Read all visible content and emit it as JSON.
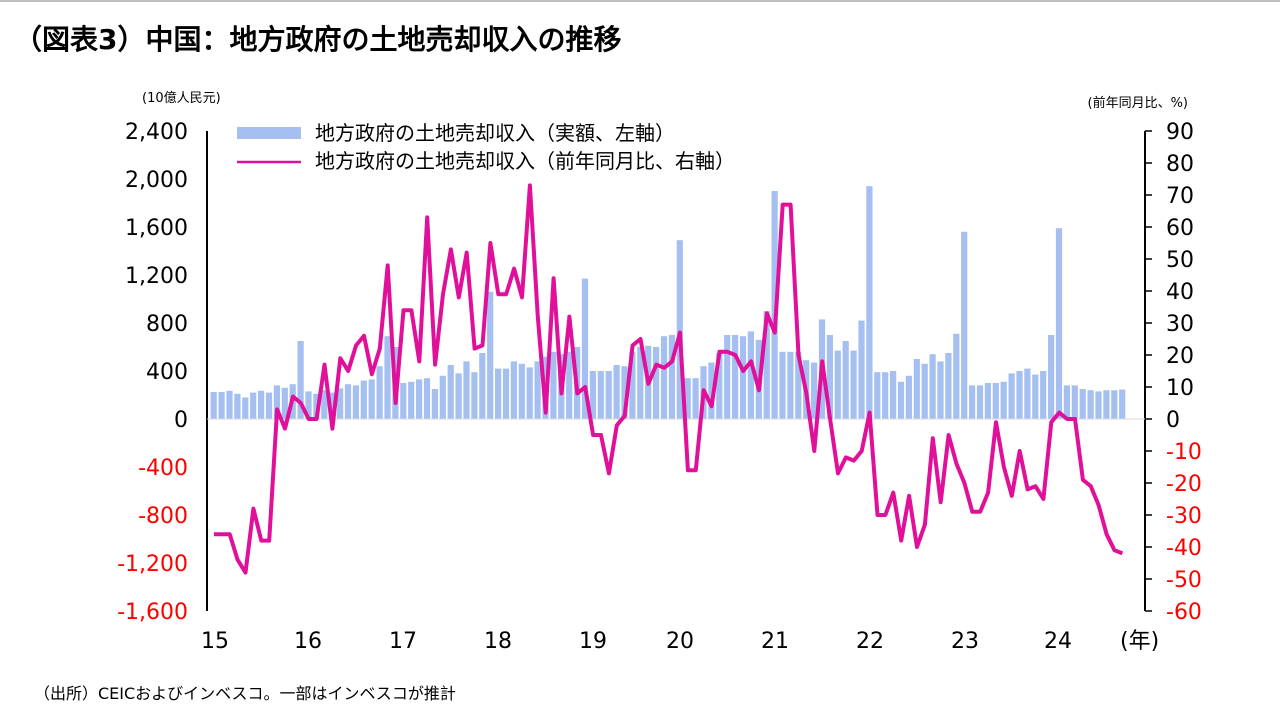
{
  "title": "（図表3）中国：地方政府の土地売却収入の推移",
  "source": "（出所）CEICおよびインベスコ。一部はインベスコが推計",
  "colors": {
    "bar": "#a4bff0",
    "line": "#e0109a",
    "negative_tick": "#ff0000",
    "axis": "#000000"
  },
  "chart_data": {
    "type": "bar+line",
    "left_axis_unit": "(10億人民元)",
    "right_axis_unit": "(前年同月比、%)",
    "x_axis_unit": "(年)",
    "left_axis": {
      "min": -1600,
      "max": 2400,
      "ticks": [
        2400,
        2000,
        1600,
        1200,
        800,
        400,
        0,
        -400,
        -800,
        -1200,
        -1600
      ],
      "tick_labels": [
        "2,400",
        "2,000",
        "1,600",
        "1,200",
        "800",
        "400",
        "0",
        "-400",
        "-800",
        "-1,200",
        "-1,600"
      ]
    },
    "right_axis": {
      "min": -60,
      "max": 90,
      "ticks": [
        90,
        80,
        70,
        60,
        50,
        40,
        30,
        20,
        10,
        0,
        -10,
        -20,
        -30,
        -40,
        -50,
        -60
      ],
      "tick_labels": [
        "90",
        "80",
        "70",
        "60",
        "50",
        "40",
        "30",
        "20",
        "10",
        "0",
        "-10",
        "-20",
        "-30",
        "-40",
        "-50",
        "-60"
      ]
    },
    "year_labels": [
      "15",
      "16",
      "17",
      "18",
      "19",
      "20",
      "21",
      "22",
      "23",
      "24"
    ],
    "legend": {
      "bar": "地方政府の土地売却収入（実額、左軸）",
      "line": "地方政府の土地売却収入（前年同月比、右軸）"
    },
    "start": "2015-01",
    "series": [
      {
        "name": "地方政府の土地売却収入（実額、左軸）",
        "axis": "left",
        "type": "bar",
        "values": [
          225,
          225,
          235,
          210,
          180,
          220,
          235,
          220,
          280,
          260,
          290,
          650,
          230,
          210,
          240,
          220,
          255,
          290,
          280,
          320,
          330,
          440,
          690,
          600,
          300,
          310,
          330,
          340,
          250,
          360,
          450,
          380,
          480,
          390,
          550,
          1060,
          420,
          420,
          480,
          460,
          430,
          480,
          520,
          560,
          540,
          560,
          600,
          1170,
          400,
          400,
          400,
          450,
          440,
          560,
          600,
          610,
          600,
          690,
          700,
          1490,
          340,
          340,
          440,
          470,
          550,
          700,
          700,
          690,
          730,
          660,
          900,
          1900,
          560,
          560,
          560,
          490,
          470,
          830,
          700,
          570,
          650,
          570,
          820,
          1940,
          390,
          390,
          400,
          310,
          360,
          500,
          460,
          540,
          480,
          550,
          710,
          1560,
          280,
          280,
          300,
          300,
          310,
          380,
          400,
          420,
          370,
          400,
          700,
          1590,
          280,
          280,
          250,
          240,
          230,
          240,
          240,
          245
        ]
      },
      {
        "name": "地方政府の土地売却収入（前年同月比、右軸）",
        "axis": "right",
        "type": "line",
        "values": [
          -36,
          -36,
          -36,
          -44,
          -48,
          -28,
          -38,
          -38,
          3,
          -3,
          7,
          5,
          0,
          0,
          17,
          -3,
          19,
          15,
          23,
          26,
          14,
          22,
          48,
          5,
          34,
          34,
          18,
          63,
          17,
          39,
          53,
          38,
          52,
          22,
          23,
          55,
          39,
          39,
          47,
          38,
          73,
          32,
          2,
          44,
          8,
          32,
          8,
          10,
          -5,
          -5,
          -17,
          -2,
          1,
          23,
          25,
          11,
          17,
          16,
          18,
          27,
          -16,
          -16,
          9,
          4,
          21,
          21,
          20,
          15,
          18,
          9,
          33,
          27,
          67,
          67,
          20,
          8,
          -10,
          18,
          0,
          -17,
          -12,
          -13,
          -10,
          2,
          -30,
          -30,
          -23,
          -38,
          -24,
          -40,
          -33,
          -6,
          -26,
          -5,
          -14,
          -20,
          -29,
          -29,
          -23,
          -1,
          -15,
          -24,
          -10,
          -22,
          -21,
          -25,
          -1,
          2,
          0,
          0,
          -19,
          -21,
          -27,
          -36,
          -41,
          -42
        ]
      }
    ]
  }
}
